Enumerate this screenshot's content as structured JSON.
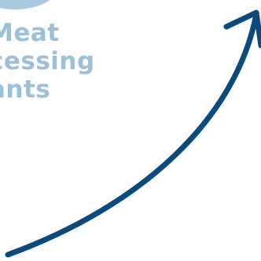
{
  "colors": {
    "label": "#9bc0d8",
    "blob": "#a9c9de",
    "arrow": "#0a4a7c"
  },
  "label": {
    "lines": [
      "Meat",
      "cessing",
      "ants"
    ]
  },
  "icons": {
    "arrow": "curved-up-arrow-icon"
  }
}
